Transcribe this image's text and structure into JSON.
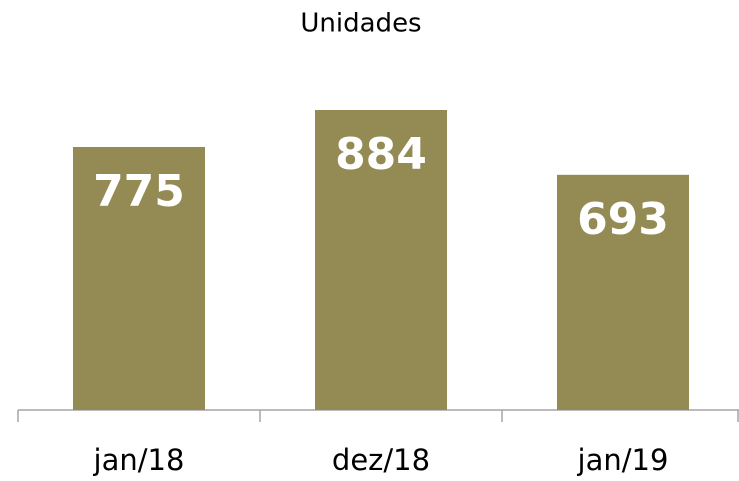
{
  "chart_data": {
    "type": "bar",
    "title": "Unidades",
    "categories": [
      "jan/18",
      "dez/18",
      "jan/19"
    ],
    "values": [
      775,
      884,
      693
    ],
    "color": "#948a54"
  }
}
